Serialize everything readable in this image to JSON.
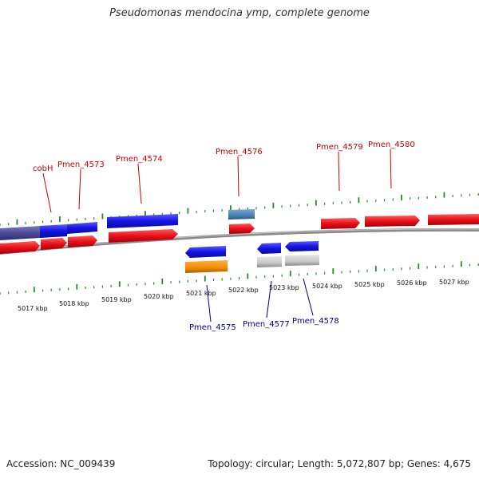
{
  "title": "Pseudomonas mendocina ymp, complete genome",
  "footer": {
    "accession": "Accession: NC_009439",
    "topology": "Topology: circular; Length: 5,072,807 bp; Genes: 4,675"
  },
  "colors": {
    "gene_forward": "#e8101a",
    "cds_forward": "#1414e6",
    "cds_purple": "#4a4a9a",
    "trna": "#4682b4",
    "gene_reverse_orange": "#f08c00",
    "gene_grey": "#c8c8c8",
    "tick": "#2a8a2a",
    "backbone": "#8a8a8a",
    "label_forward": "#cc0000",
    "label_reverse": "#00008b"
  },
  "ruler_labels": [
    "5017 kbp",
    "5018 kbp",
    "5019 kbp",
    "5020 kbp",
    "5021 kbp",
    "5022 kbp",
    "5023 kbp",
    "5024 kbp",
    "5025 kbp",
    "5026 kbp",
    "5027 kbp"
  ],
  "gene_labels_top": [
    "cobH",
    "Pmen_4573",
    "Pmen_4574",
    "Pmen_4576",
    "Pmen_4579",
    "Pmen_4580"
  ],
  "gene_labels_bottom": [
    "Pmen_4575",
    "Pmen_4577",
    "Pmen_4578"
  ]
}
